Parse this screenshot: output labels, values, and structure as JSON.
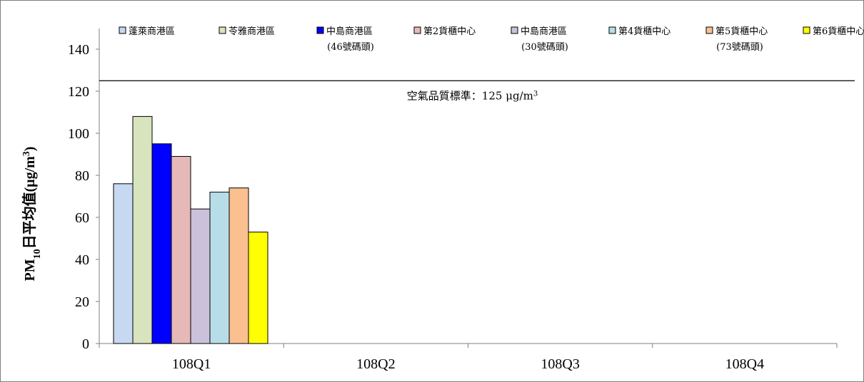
{
  "chart_data": {
    "type": "bar",
    "title": "",
    "ylabel": "PM10日平均值(μg/m3)",
    "ylabel_parts": {
      "a": "PM",
      "sub": "10",
      "b": "日平均值(μg/m",
      "sup": "3",
      "c": ")"
    },
    "xlabel": "",
    "ylim": [
      0,
      140
    ],
    "yticks": [
      0,
      20,
      40,
      60,
      80,
      100,
      120,
      140
    ],
    "grid": false,
    "legend_position": "top",
    "categories": [
      "108Q1",
      "108Q2",
      "108Q3",
      "108Q4"
    ],
    "series": [
      {
        "name": "蓬萊商港區",
        "color": "#c6d9f1",
        "values": [
          76,
          null,
          null,
          null
        ]
      },
      {
        "name": "苓雅商港區",
        "color": "#d7e4bd",
        "values": [
          108,
          null,
          null,
          null
        ]
      },
      {
        "name": "中島商港區(46號碼頭)",
        "color": "#0000ff",
        "values": [
          95,
          null,
          null,
          null
        ]
      },
      {
        "name": "第2貨櫃中心",
        "color": "#e6b9b8",
        "values": [
          89,
          null,
          null,
          null
        ]
      },
      {
        "name": "中島商港區(30號碼頭)",
        "color": "#ccc1da",
        "values": [
          64,
          null,
          null,
          null
        ]
      },
      {
        "name": "第4貨櫃中心",
        "color": "#b7dee8",
        "values": [
          72,
          null,
          null,
          null
        ]
      },
      {
        "name": "第5貨櫃中心(73號碼頭)",
        "color": "#fac090",
        "values": [
          74,
          null,
          null,
          null
        ]
      },
      {
        "name": "第6貨櫃中心",
        "color": "#ffff00",
        "values": [
          53,
          null,
          null,
          null
        ]
      }
    ],
    "legend": [
      {
        "line1": "蓬萊商港區",
        "line2": ""
      },
      {
        "line1": "苓雅商港區",
        "line2": ""
      },
      {
        "line1": "中島商港區",
        "line2": "(46號碼頭)"
      },
      {
        "line1": "第2貨櫃中心",
        "line2": ""
      },
      {
        "line1": "中島商港區",
        "line2": "(30號碼頭)"
      },
      {
        "line1": "第4貨櫃中心",
        "line2": ""
      },
      {
        "line1": "第5貨櫃中心",
        "line2": "(73號碼頭)"
      },
      {
        "line1": "第6貨櫃中心",
        "line2": ""
      }
    ],
    "reference_line": {
      "value": 125,
      "label": "空氣品質標準：125 μg/m",
      "label_sup": "3"
    }
  }
}
